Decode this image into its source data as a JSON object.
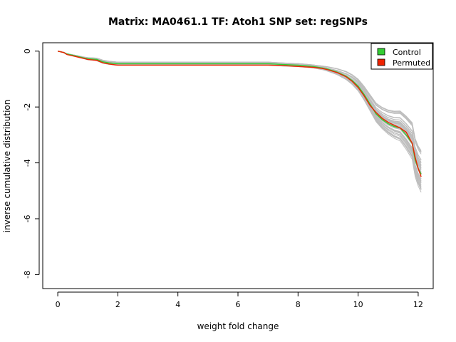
{
  "chart_data": {
    "type": "line",
    "title": "Matrix: MA0461.1 TF: Atoh1 SNP set: regSNPs",
    "xlabel": "weight fold change",
    "ylabel": "inverse cumulative distribution",
    "xlim": [
      -0.5,
      12.5
    ],
    "ylim": [
      -8.5,
      0.3
    ],
    "x_ticks": [
      0,
      2,
      4,
      6,
      8,
      10,
      12
    ],
    "y_ticks": [
      0,
      -2,
      -4,
      -6,
      -8
    ],
    "grid": false,
    "legend_position": "top-right",
    "colors": {
      "control": "#33cc33",
      "permuted": "#ee2200",
      "background": "#bdbdbd"
    },
    "legend": [
      {
        "label": "Control",
        "color": "#33cc33"
      },
      {
        "label": "Permuted",
        "color": "#ee2200"
      }
    ],
    "series": [
      {
        "name": "Control",
        "color": "#33cc33",
        "x": [
          0,
          0.2,
          0.3,
          0.5,
          0.7,
          0.9,
          1.0,
          1.3,
          1.5,
          1.7,
          1.9,
          2.0,
          3,
          4,
          5,
          6,
          7,
          7.5,
          8,
          8.5,
          8.8,
          9.0,
          9.3,
          9.6,
          9.8,
          10.0,
          10.2,
          10.4,
          10.6,
          10.8,
          11.0,
          11.2,
          11.4,
          11.6,
          11.8,
          11.9,
          12.0,
          12.1
        ],
        "y": [
          0,
          -0.05,
          -0.1,
          -0.15,
          -0.2,
          -0.25,
          -0.27,
          -0.3,
          -0.38,
          -0.42,
          -0.44,
          -0.45,
          -0.45,
          -0.45,
          -0.45,
          -0.45,
          -0.45,
          -0.48,
          -0.5,
          -0.55,
          -0.6,
          -0.65,
          -0.75,
          -0.9,
          -1.05,
          -1.25,
          -1.55,
          -1.9,
          -2.25,
          -2.45,
          -2.6,
          -2.7,
          -2.75,
          -3.0,
          -3.3,
          -3.9,
          -4.2,
          -4.4
        ]
      },
      {
        "name": "Permuted",
        "color": "#ee2200",
        "x": [
          0,
          0.2,
          0.3,
          0.5,
          0.7,
          0.9,
          1.0,
          1.3,
          1.5,
          1.7,
          1.9,
          2.0,
          3,
          4,
          5,
          6,
          7,
          7.5,
          8,
          8.5,
          8.8,
          9.0,
          9.3,
          9.6,
          9.8,
          10.0,
          10.2,
          10.4,
          10.6,
          10.8,
          11.0,
          11.2,
          11.4,
          11.6,
          11.8,
          11.9,
          12.0,
          12.1
        ],
        "y": [
          0,
          -0.05,
          -0.12,
          -0.17,
          -0.22,
          -0.27,
          -0.3,
          -0.33,
          -0.42,
          -0.46,
          -0.49,
          -0.5,
          -0.5,
          -0.5,
          -0.5,
          -0.5,
          -0.5,
          -0.52,
          -0.55,
          -0.58,
          -0.62,
          -0.67,
          -0.77,
          -0.92,
          -1.08,
          -1.3,
          -1.6,
          -1.95,
          -2.2,
          -2.4,
          -2.55,
          -2.65,
          -2.75,
          -2.9,
          -3.3,
          -3.8,
          -4.2,
          -4.5
        ]
      }
    ]
  }
}
